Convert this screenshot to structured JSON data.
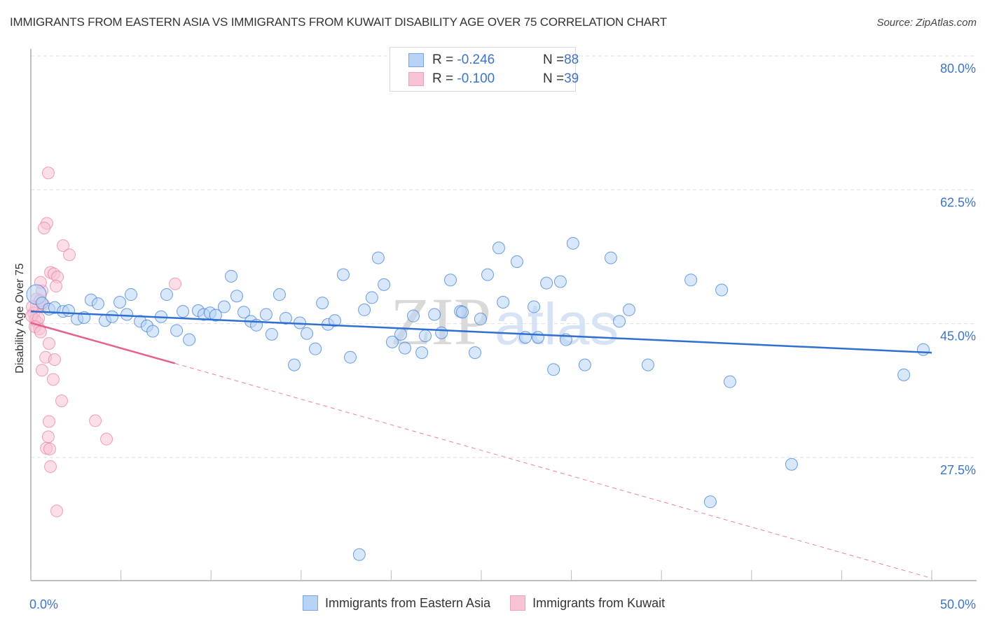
{
  "header": {
    "title": "IMMIGRANTS FROM EASTERN ASIA VS IMMIGRANTS FROM KUWAIT DISABILITY AGE OVER 75 CORRELATION CHART",
    "source": "Source: ZipAtlas.com"
  },
  "legend": {
    "rows": [
      {
        "r_label": "R = ",
        "r_value": "-0.246",
        "n_label": "N = ",
        "n_value": "88"
      },
      {
        "r_label": "R = ",
        "r_value": "-0.100",
        "n_label": "N = ",
        "n_value": "39"
      }
    ]
  },
  "watermark": {
    "zip": "ZIP",
    "atlas": "atlas"
  },
  "colors": {
    "blue_fill": "#b8d3f5",
    "blue_stroke": "#3d7fd9",
    "blue_line": "#2f6fd1",
    "pink_fill": "#f8c3d4",
    "pink_stroke": "#e87aa0",
    "pink_line": "#e5608e",
    "tick_text": "#3d73c9",
    "grid": "#dddddd"
  },
  "chart_data": {
    "type": "scatter",
    "title": "IMMIGRANTS FROM EASTERN ASIA VS IMMIGRANTS FROM KUWAIT DISABILITY AGE OVER 75 CORRELATION CHART",
    "xlabel": "",
    "ylabel": "Disability Age Over 75",
    "xlim": [
      0,
      50
    ],
    "ylim": [
      12.5,
      81.5
    ],
    "x_ticks": [
      0,
      5,
      10,
      15,
      20,
      25,
      30,
      35,
      40,
      45,
      50
    ],
    "x_tick_labels": [
      {
        "value": 0,
        "label": "0.0%"
      },
      {
        "value": 50,
        "label": "50.0%"
      }
    ],
    "y_ticks": [
      {
        "value": 80.0,
        "label": "80.0%"
      },
      {
        "value": 62.5,
        "label": "62.5%"
      },
      {
        "value": 45.0,
        "label": "45.0%"
      },
      {
        "value": 27.5,
        "label": "27.5%"
      }
    ],
    "grid": true,
    "legend_position": "top-center",
    "series": [
      {
        "name": "Immigrants from Eastern Asia",
        "color": "#b8d3f5",
        "R": -0.246,
        "N": 88,
        "trend": {
          "x": [
            0,
            50
          ],
          "y": [
            46.6,
            41.2
          ],
          "style": "solid"
        },
        "points": [
          [
            0.31,
            48.8
          ],
          [
            0.62,
            47.7
          ],
          [
            1.01,
            46.9
          ],
          [
            1.32,
            47.1
          ],
          [
            1.79,
            46.6
          ],
          [
            2.1,
            46.7
          ],
          [
            2.57,
            45.6
          ],
          [
            2.96,
            45.8
          ],
          [
            3.34,
            48.1
          ],
          [
            3.73,
            47.6
          ],
          [
            4.12,
            45.4
          ],
          [
            4.51,
            45.9
          ],
          [
            4.94,
            47.8
          ],
          [
            5.33,
            46.2
          ],
          [
            5.56,
            48.8
          ],
          [
            6.07,
            45.3
          ],
          [
            6.45,
            44.7
          ],
          [
            6.77,
            44.0
          ],
          [
            7.23,
            45.9
          ],
          [
            7.54,
            48.8
          ],
          [
            8.09,
            44.1
          ],
          [
            8.44,
            46.6
          ],
          [
            8.79,
            42.9
          ],
          [
            9.29,
            46.7
          ],
          [
            9.6,
            46.2
          ],
          [
            9.95,
            46.4
          ],
          [
            10.26,
            46.1
          ],
          [
            10.73,
            47.2
          ],
          [
            11.12,
            51.2
          ],
          [
            11.43,
            48.6
          ],
          [
            11.82,
            46.5
          ],
          [
            12.21,
            45.3
          ],
          [
            12.52,
            44.8
          ],
          [
            13.06,
            46.2
          ],
          [
            13.37,
            43.6
          ],
          [
            13.8,
            48.8
          ],
          [
            14.15,
            45.7
          ],
          [
            14.62,
            39.6
          ],
          [
            14.93,
            45.1
          ],
          [
            15.32,
            43.7
          ],
          [
            15.79,
            41.7
          ],
          [
            16.18,
            47.7
          ],
          [
            16.49,
            44.9
          ],
          [
            16.87,
            45.4
          ],
          [
            17.34,
            51.4
          ],
          [
            17.73,
            40.6
          ],
          [
            18.51,
            46.8
          ],
          [
            18.93,
            48.4
          ],
          [
            19.28,
            53.6
          ],
          [
            19.6,
            50.1
          ],
          [
            20.06,
            42.6
          ],
          [
            20.53,
            43.6
          ],
          [
            20.76,
            41.8
          ],
          [
            21.23,
            46.0
          ],
          [
            21.7,
            41.2
          ],
          [
            21.89,
            43.4
          ],
          [
            22.4,
            46.2
          ],
          [
            22.79,
            43.8
          ],
          [
            23.29,
            50.7
          ],
          [
            23.84,
            46.6
          ],
          [
            23.95,
            46.5
          ],
          [
            24.65,
            41.2
          ],
          [
            24.96,
            45.6
          ],
          [
            25.35,
            51.4
          ],
          [
            25.97,
            54.9
          ],
          [
            26.21,
            47.8
          ],
          [
            26.98,
            53.1
          ],
          [
            27.45,
            43.2
          ],
          [
            27.92,
            47.2
          ],
          [
            28.15,
            43.2
          ],
          [
            28.62,
            50.3
          ],
          [
            29.01,
            39.0
          ],
          [
            29.39,
            50.5
          ],
          [
            29.7,
            42.9
          ],
          [
            30.09,
            55.5
          ],
          [
            30.75,
            39.6
          ],
          [
            32.19,
            53.6
          ],
          [
            32.66,
            45.3
          ],
          [
            33.2,
            46.8
          ],
          [
            34.25,
            39.6
          ],
          [
            36.63,
            50.7
          ],
          [
            38.34,
            49.4
          ],
          [
            38.8,
            37.4
          ],
          [
            42.22,
            26.6
          ],
          [
            37.71,
            21.7
          ],
          [
            48.45,
            38.3
          ],
          [
            49.53,
            41.6
          ],
          [
            18.23,
            14.8
          ]
        ]
      },
      {
        "name": "Immigrants from Kuwait",
        "color": "#f8c3d4",
        "R": -0.1,
        "N": 39,
        "trend": {
          "x": [
            0,
            8.0,
            50
          ],
          "y": [
            45.1,
            39.8,
            11.7
          ],
          "style": "solid-then-dashed"
        },
        "points": [
          [
            0.62,
            49.3
          ],
          [
            0.31,
            48.2
          ],
          [
            0.43,
            47.3
          ],
          [
            0.16,
            46.4
          ],
          [
            0.23,
            45.5
          ],
          [
            0.35,
            45.2
          ],
          [
            0.47,
            44.3
          ],
          [
            0.54,
            50.4
          ],
          [
            0.7,
            47.5
          ],
          [
            0.51,
            48.0
          ],
          [
            0.08,
            47.2
          ],
          [
            0.04,
            46.0
          ],
          [
            0.97,
            64.7
          ],
          [
            0.89,
            58.1
          ],
          [
            0.74,
            57.5
          ],
          [
            1.79,
            55.2
          ],
          [
            2.14,
            54.0
          ],
          [
            1.09,
            51.7
          ],
          [
            1.28,
            51.5
          ],
          [
            1.48,
            51.1
          ],
          [
            1.4,
            49.9
          ],
          [
            8.01,
            50.2
          ],
          [
            1.01,
            42.4
          ],
          [
            0.82,
            40.6
          ],
          [
            1.32,
            40.3
          ],
          [
            0.62,
            38.9
          ],
          [
            1.24,
            37.7
          ],
          [
            1.71,
            34.9
          ],
          [
            1.01,
            32.2
          ],
          [
            0.97,
            30.2
          ],
          [
            0.86,
            28.7
          ],
          [
            1.05,
            28.6
          ],
          [
            1.09,
            26.3
          ],
          [
            3.58,
            32.3
          ],
          [
            4.2,
            29.9
          ],
          [
            1.44,
            20.5
          ],
          [
            0.43,
            45.7
          ],
          [
            0.23,
            44.6
          ],
          [
            0.54,
            43.9
          ]
        ]
      }
    ]
  }
}
